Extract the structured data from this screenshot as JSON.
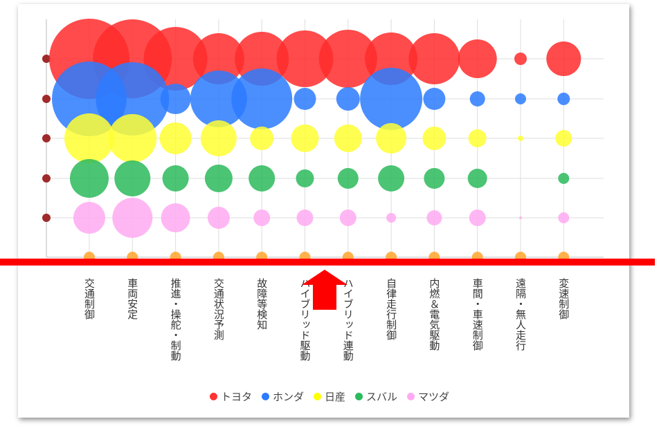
{
  "chart_data": {
    "type": "scatter",
    "categories": [
      "交通制御",
      "車両安定",
      "推進・操舵・制動",
      "交通状況予測",
      "故障等検知",
      "ハイブリッド駆動",
      "ハイブリッド連動",
      "自律走行制御",
      "内燃＆電気駆動",
      "車間・車速制御",
      "遠隔・無人走行",
      "変速制御"
    ],
    "series": [
      {
        "name": "トヨタ",
        "color": "#ff2b2b",
        "sizes": [
          58,
          57,
          46,
          37,
          39,
          41,
          42,
          38,
          37,
          28,
          9,
          25
        ]
      },
      {
        "name": "ホンダ",
        "color": "#2b7bff",
        "sizes": [
          54,
          53,
          22,
          41,
          44,
          16,
          17,
          45,
          16,
          11,
          8,
          9
        ]
      },
      {
        "name": "日産",
        "color": "#ffff33",
        "sizes": [
          36,
          35,
          23,
          26,
          17,
          20,
          20,
          22,
          17,
          13,
          4,
          12
        ]
      },
      {
        "name": "スバル",
        "color": "#2bba5c",
        "sizes": [
          28,
          26,
          19,
          20,
          19,
          13,
          15,
          19,
          15,
          14,
          0,
          8
        ]
      },
      {
        "name": "マツダ",
        "color": "#ffaaf2",
        "sizes": [
          23,
          29,
          21,
          16,
          12,
          12,
          12,
          7,
          11,
          12,
          2,
          8
        ]
      },
      {
        "name": "",
        "color": "#ffa52b",
        "sizes": [
          8,
          8,
          8,
          8,
          8,
          8,
          8,
          8,
          8,
          8,
          8,
          8
        ]
      }
    ],
    "legend": "bottom",
    "grid": true
  },
  "legend": [
    {
      "name": "トヨタ",
      "color": "#ff3333"
    },
    {
      "name": "ホンダ",
      "color": "#2b7bff"
    },
    {
      "name": "日産",
      "color": "#ffff00"
    },
    {
      "name": "スバル",
      "color": "#2bba5c"
    },
    {
      "name": "マツダ",
      "color": "#ffaaf2"
    }
  ],
  "colors": {
    "annotation": "#ff0000"
  }
}
